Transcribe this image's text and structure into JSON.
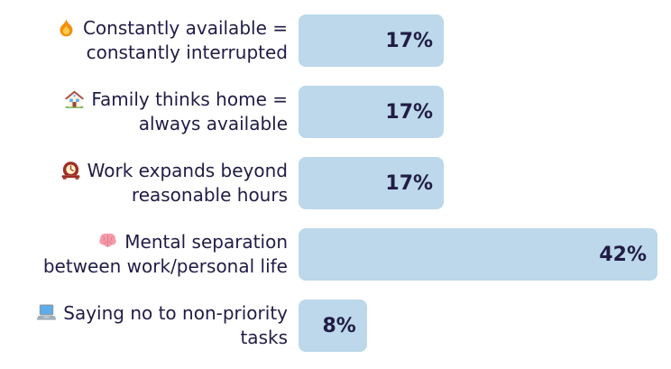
{
  "chart_data": {
    "type": "bar",
    "orientation": "horizontal",
    "title": "",
    "categories": [
      "Constantly available = constantly interrupted",
      "Family thinks home = always available",
      "Work expands beyond reasonable hours",
      "Mental separation between work/personal life",
      "Saying no to non-priority tasks"
    ],
    "values": [
      17,
      17,
      17,
      42,
      8
    ],
    "value_labels": [
      "17%",
      "17%",
      "17%",
      "42%",
      "8%"
    ],
    "xlim": [
      0,
      42
    ],
    "grid": false,
    "legend": "none",
    "bar_color": "#bcd8ea",
    "text_color": "#211c45",
    "background_color": "#ffffff"
  },
  "rows": [
    {
      "icon": "fire-icon",
      "emoji": "🔥",
      "label_lines": [
        "Constantly available =",
        "constantly interrupted"
      ],
      "value": 17,
      "value_label": "17%"
    },
    {
      "icon": "house-icon",
      "emoji": "🏡",
      "label_lines": [
        "Family thinks home =",
        "always available"
      ],
      "value": 17,
      "value_label": "17%"
    },
    {
      "icon": "mantel-clock-icon",
      "emoji": "🕰️",
      "label_lines": [
        "Work expands beyond",
        "reasonable hours"
      ],
      "value": 17,
      "value_label": "17%"
    },
    {
      "icon": "brain-icon",
      "emoji": "🧠",
      "label_lines": [
        "Mental separation",
        "between work/personal life"
      ],
      "value": 42,
      "value_label": "42%"
    },
    {
      "icon": "laptop-icon",
      "emoji": "💻",
      "label_lines": [
        "Saying no to non-priority",
        "tasks"
      ],
      "value": 8,
      "value_label": "8%"
    }
  ]
}
